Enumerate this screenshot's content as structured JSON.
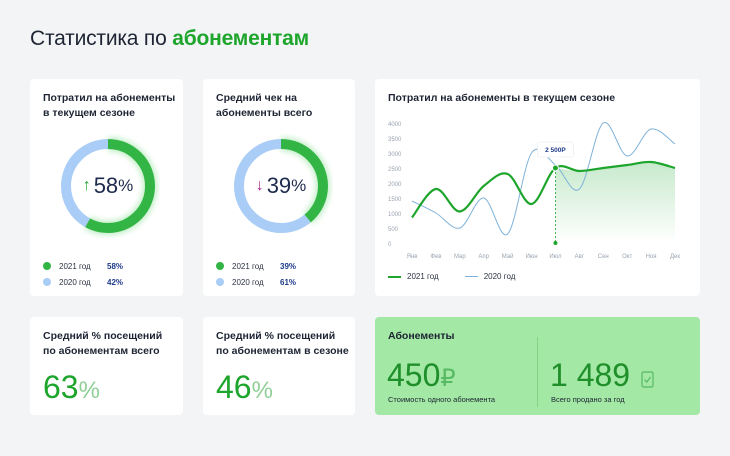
{
  "header": {
    "title_prefix": "Статистика по",
    "title_accent": "абонементам"
  },
  "card1": {
    "title": "Потратил на абонементы\nв текущем сезоне",
    "arrow": "↑",
    "arrow_color": "#1ea52c",
    "value": "58",
    "unit": "%",
    "legend": [
      {
        "label": "2021 год",
        "value": "58%",
        "color": "#32b545"
      },
      {
        "label": "2020 год",
        "value": "42%",
        "color": "#a9cdf6"
      }
    ],
    "chart_data": {
      "type": "pie",
      "categories": [
        "2021 год",
        "2020 год"
      ],
      "values": [
        58,
        42
      ]
    }
  },
  "card2": {
    "title": "Средний чек на\nабонементы всего",
    "arrow": "↓",
    "arrow_color": "#b0258f",
    "value": "39",
    "unit": "%",
    "legend": [
      {
        "label": "2021 год",
        "value": "39%",
        "color": "#32b545"
      },
      {
        "label": "2020 год",
        "value": "61%",
        "color": "#a9cdf6"
      }
    ],
    "chart_data": {
      "type": "pie",
      "categories": [
        "2021 год",
        "2020 год"
      ],
      "values": [
        39,
        61
      ]
    }
  },
  "line_card": {
    "title": "Потратил на абонементы в текущем сезоне",
    "tooltip": "2 500Р",
    "legend": [
      {
        "label": "2021 год",
        "color": "#1ea52c"
      },
      {
        "label": "2020 год",
        "color": "#7fb2d9"
      }
    ]
  },
  "chart_data": {
    "type": "line",
    "x": [
      "Янв",
      "Фев",
      "Мар",
      "Апр",
      "Май",
      "Июн",
      "Июл",
      "Авг",
      "Сен",
      "Окт",
      "Ноя",
      "Дек"
    ],
    "ylim": [
      0,
      4000
    ],
    "yticks": [
      "4000",
      "3500",
      "3000",
      "2500",
      "2000",
      "1500",
      "1000",
      "500",
      "0"
    ],
    "grid": false,
    "series": [
      {
        "name": "2021 год",
        "values": [
          850,
          1800,
          1050,
          1900,
          2300,
          1300,
          2500,
          2400,
          2500,
          2600,
          2700,
          2500
        ]
      },
      {
        "name": "2020 год",
        "values": [
          1400,
          1000,
          500,
          1500,
          300,
          3000,
          2600,
          1800,
          4000,
          2900,
          3800,
          3300
        ]
      }
    ]
  },
  "card4": {
    "title": "Средний % посещений\nпо абонементам всего",
    "value": "63",
    "unit": "%"
  },
  "card5": {
    "title": "Средний % посещений\nпо абонементам в сезоне",
    "value": "46",
    "unit": "%"
  },
  "subs": {
    "title": "Абонементы",
    "price": "450",
    "price_symbol": "₽",
    "price_caption": "Стоимость одного абонемента",
    "sold": "1 489",
    "sold_caption": "Всего продано за год"
  }
}
